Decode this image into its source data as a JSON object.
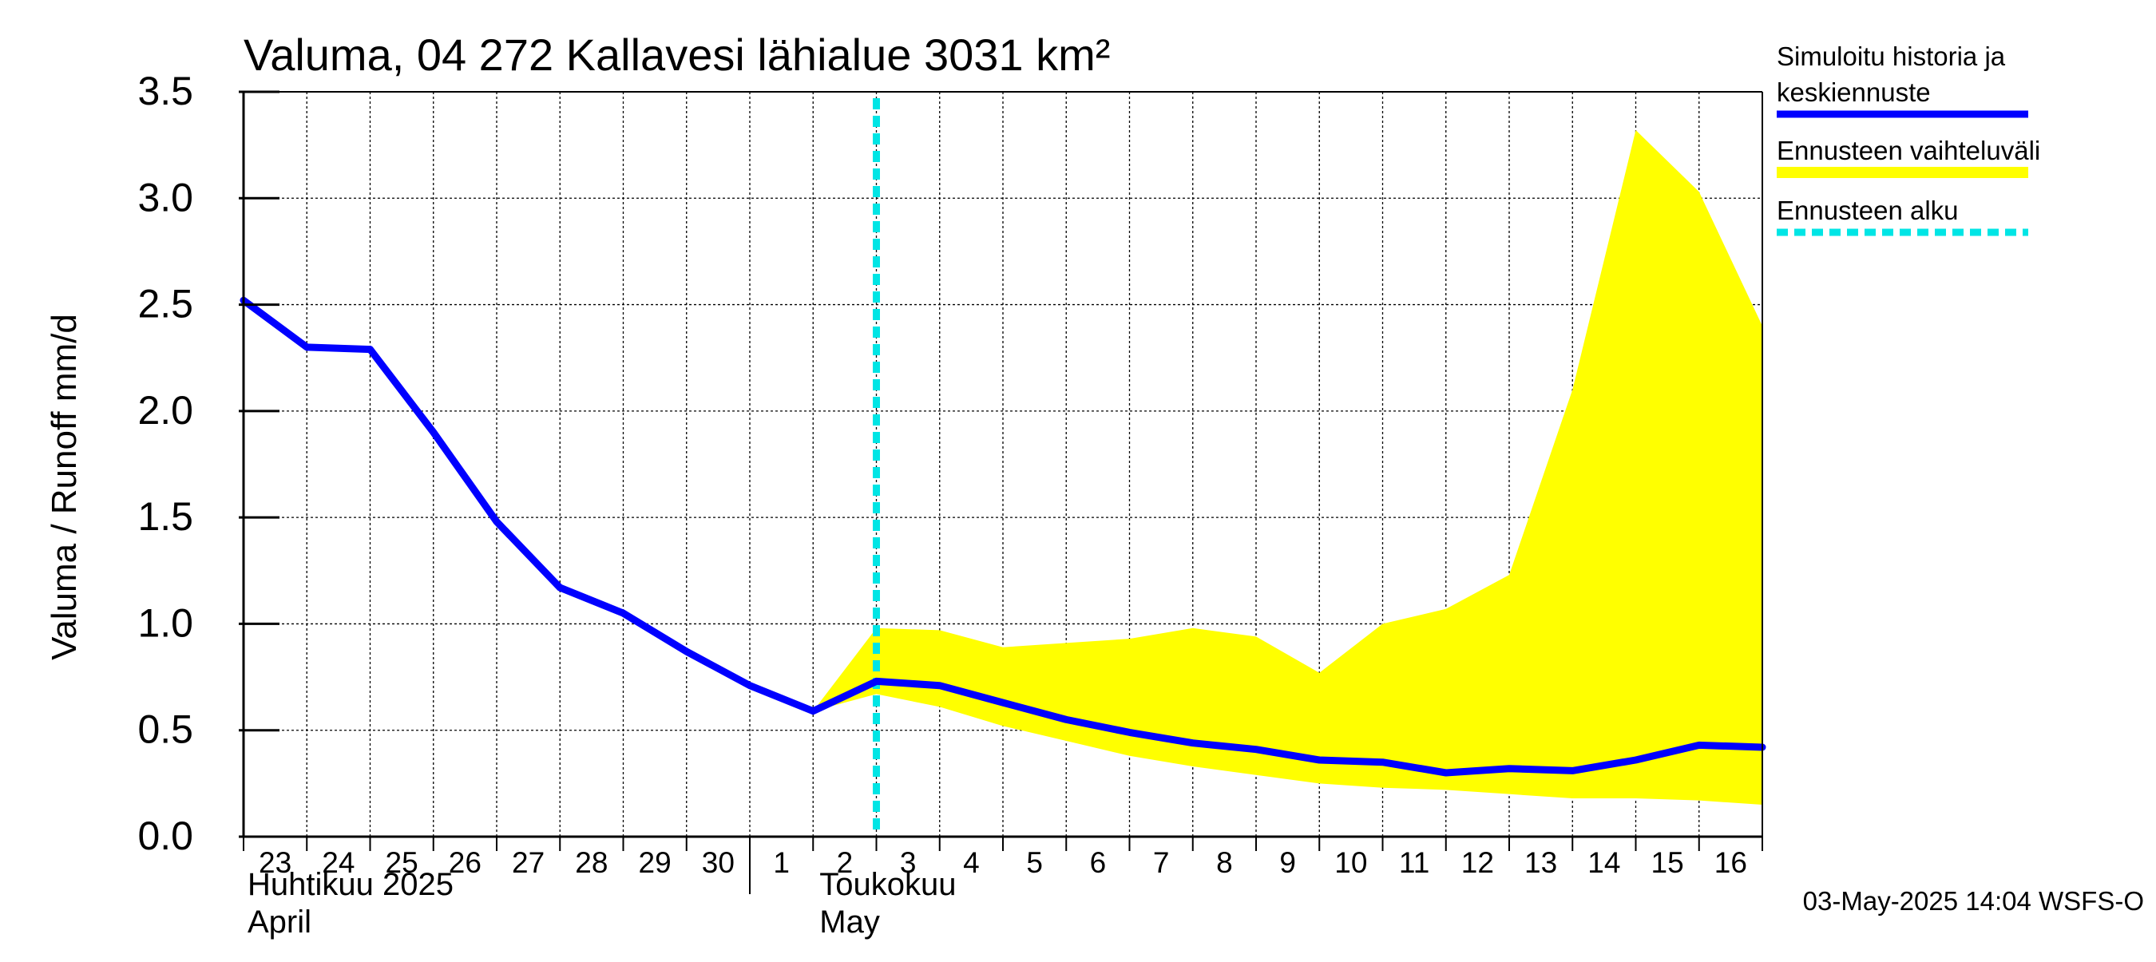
{
  "chart_data": {
    "type": "line",
    "title": "Valuma, 04 272 Kallavesi lähialue 3031 km²",
    "ylabel": "Valuma / Runoff    mm/d",
    "ylim": [
      0,
      3.5
    ],
    "yticks": [
      "0.0",
      "0.5",
      "1.0",
      "1.5",
      "2.0",
      "2.5",
      "3.0",
      "3.5"
    ],
    "x_day_labels": [
      "23",
      "24",
      "25",
      "26",
      "27",
      "28",
      "29",
      "30",
      "1",
      "2",
      "3",
      "4",
      "5",
      "6",
      "7",
      "8",
      "9",
      "10",
      "11",
      "12",
      "13",
      "14",
      "15",
      "16"
    ],
    "months": [
      {
        "fi": "Huhtikuu  2025",
        "en": "April"
      },
      {
        "fi": "Toukokuu",
        "en": "May"
      }
    ],
    "x_start": "2025-04-23",
    "x_end": "2025-05-17",
    "forecast_start": "2025-05-03",
    "series": [
      {
        "name": "Simuloitu historia ja keskiennuste",
        "color": "#0000ff",
        "x": [
          "2025-04-23",
          "2025-04-24",
          "2025-04-25",
          "2025-04-26",
          "2025-04-27",
          "2025-04-28",
          "2025-04-29",
          "2025-04-30",
          "2025-05-01",
          "2025-05-02",
          "2025-05-03",
          "2025-05-04",
          "2025-05-05",
          "2025-05-06",
          "2025-05-07",
          "2025-05-08",
          "2025-05-09",
          "2025-05-10",
          "2025-05-11",
          "2025-05-12",
          "2025-05-13",
          "2025-05-14",
          "2025-05-15",
          "2025-05-16",
          "2025-05-17"
        ],
        "values": [
          2.52,
          2.3,
          2.29,
          1.9,
          1.48,
          1.17,
          1.05,
          0.87,
          0.71,
          0.59,
          0.73,
          0.71,
          0.63,
          0.55,
          0.49,
          0.44,
          0.41,
          0.36,
          0.35,
          0.3,
          0.32,
          0.31,
          0.36,
          0.43,
          0.42
        ]
      },
      {
        "name": "Ennusteen vaihteluväli",
        "color": "#ffff00",
        "x": [
          "2025-05-02",
          "2025-05-03",
          "2025-05-04",
          "2025-05-05",
          "2025-05-06",
          "2025-05-07",
          "2025-05-08",
          "2025-05-09",
          "2025-05-10",
          "2025-05-11",
          "2025-05-12",
          "2025-05-13",
          "2025-05-14",
          "2025-05-15",
          "2025-05-16",
          "2025-05-17"
        ],
        "upper": [
          0.59,
          0.98,
          0.97,
          0.89,
          0.91,
          0.93,
          0.98,
          0.94,
          0.77,
          1.0,
          1.07,
          1.23,
          2.1,
          3.32,
          3.03,
          2.4
        ],
        "lower": [
          0.59,
          0.67,
          0.61,
          0.52,
          0.45,
          0.38,
          0.33,
          0.29,
          0.25,
          0.23,
          0.22,
          0.2,
          0.18,
          0.18,
          0.17,
          0.15
        ]
      }
    ],
    "legend": [
      {
        "label_line1": "Simuloitu historia ja",
        "label_line2": "keskiennuste",
        "color": "#0000ff",
        "style": "solid"
      },
      {
        "label_line1": "Ennusteen vaihteluväli",
        "label_line2": "",
        "color": "#ffff00",
        "style": "solid"
      },
      {
        "label_line1": "Ennusteen alku",
        "label_line2": "",
        "color": "#00e5e5",
        "style": "dashed"
      }
    ],
    "grid": true,
    "legend_position": "right",
    "footer": "03-May-2025 14:04 WSFS-O"
  }
}
